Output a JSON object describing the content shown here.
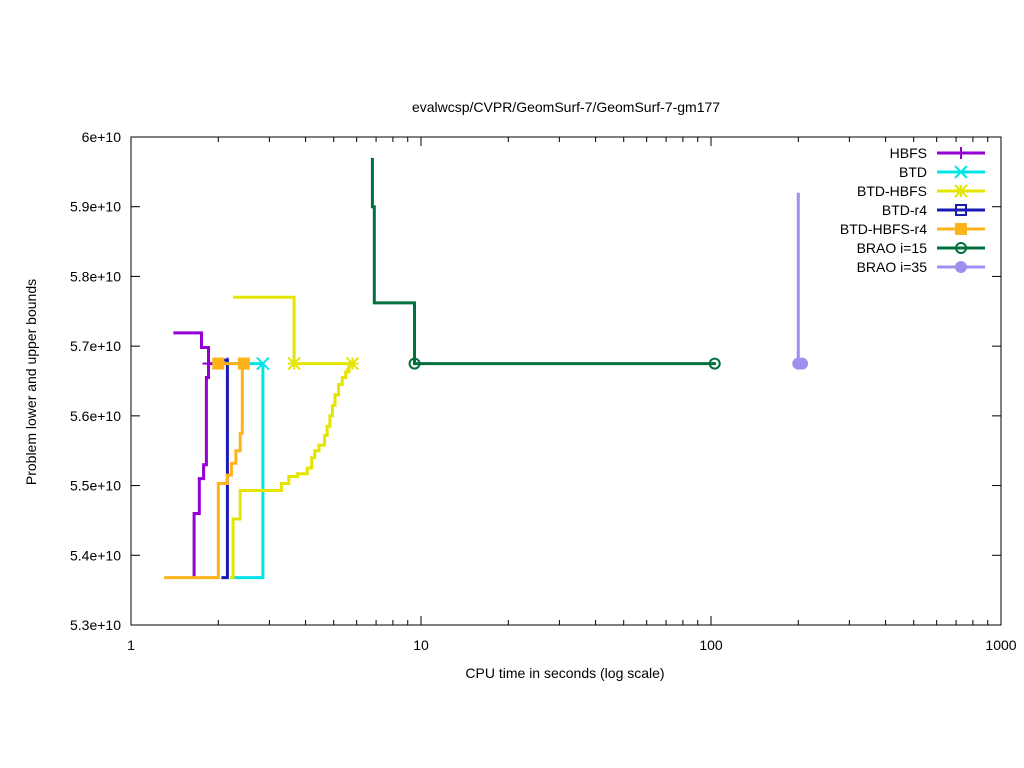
{
  "chart_data": {
    "type": "line",
    "title": "evalwcsp/CVPR/GeomSurf-7/GeomSurf-7-gm177",
    "xlabel": "CPU time in seconds (log scale)",
    "ylabel": "Problem lower and upper bounds",
    "xscale": "log",
    "xlim": [
      1,
      1000
    ],
    "ylim": [
      53000000000.0,
      60000000000.0
    ],
    "x_ticks": [
      {
        "value": 1,
        "label": "1"
      },
      {
        "value": 10,
        "label": "10"
      },
      {
        "value": 100,
        "label": "100"
      },
      {
        "value": 1000,
        "label": "1000"
      }
    ],
    "y_ticks": [
      {
        "value": 53000000000.0,
        "label": "5.3e+10"
      },
      {
        "value": 54000000000.0,
        "label": "5.4e+10"
      },
      {
        "value": 55000000000.0,
        "label": "5.5e+10"
      },
      {
        "value": 56000000000.0,
        "label": "5.6e+10"
      },
      {
        "value": 57000000000.0,
        "label": "5.7e+10"
      },
      {
        "value": 58000000000.0,
        "label": "5.8e+10"
      },
      {
        "value": 59000000000.0,
        "label": "5.9e+10"
      },
      {
        "value": 60000000000.0,
        "label": "6e+10"
      }
    ],
    "grid": false,
    "legend_position": "top-right",
    "series": [
      {
        "name": "HBFS",
        "color": "#9400d3",
        "marker": "plus",
        "upper": [
          [
            1.4,
            57190000000.0
          ],
          [
            1.75,
            57190000000.0
          ],
          [
            1.75,
            56980000000.0
          ],
          [
            1.85,
            56980000000.0
          ],
          [
            1.85,
            56750000000.0
          ],
          [
            2.15,
            56750000000.0
          ]
        ],
        "lower": [
          [
            1.65,
            53680000000.0
          ],
          [
            1.65,
            54600000000.0
          ],
          [
            1.72,
            54600000000.0
          ],
          [
            1.72,
            55100000000.0
          ],
          [
            1.78,
            55100000000.0
          ],
          [
            1.78,
            55300000000.0
          ],
          [
            1.82,
            55300000000.0
          ],
          [
            1.82,
            56550000000.0
          ],
          [
            1.85,
            56550000000.0
          ],
          [
            1.85,
            56750000000.0
          ]
        ],
        "markers": [
          [
            1.85,
            56750000000.0
          ],
          [
            2.15,
            56750000000.0
          ]
        ]
      },
      {
        "name": "BTD",
        "color": "#00e5e5",
        "marker": "cross",
        "upper": [
          [
            2.15,
            56750000000.0
          ],
          [
            2.85,
            56750000000.0
          ]
        ],
        "lower": [
          [
            2.2,
            53680000000.0
          ],
          [
            2.85,
            53680000000.0
          ],
          [
            2.85,
            56750000000.0
          ]
        ],
        "markers": [
          [
            2.85,
            56750000000.0
          ]
        ]
      },
      {
        "name": "BTD-HBFS",
        "color": "#e5e500",
        "marker": "star",
        "upper": [
          [
            2.25,
            57700000000.0
          ],
          [
            3.65,
            57700000000.0
          ],
          [
            3.65,
            56750000000.0
          ],
          [
            5.8,
            56750000000.0
          ]
        ],
        "lower": [
          [
            2.2,
            53680000000.0
          ],
          [
            2.25,
            53680000000.0
          ],
          [
            2.25,
            54520000000.0
          ],
          [
            2.38,
            54520000000.0
          ],
          [
            2.38,
            54930000000.0
          ],
          [
            3.3,
            54930000000.0
          ],
          [
            3.3,
            55030000000.0
          ],
          [
            3.5,
            55030000000.0
          ],
          [
            3.5,
            55130000000.0
          ],
          [
            3.75,
            55130000000.0
          ],
          [
            3.75,
            55170000000.0
          ],
          [
            4.05,
            55170000000.0
          ],
          [
            4.05,
            55250000000.0
          ],
          [
            4.2,
            55250000000.0
          ],
          [
            4.2,
            55400000000.0
          ],
          [
            4.3,
            55400000000.0
          ],
          [
            4.3,
            55500000000.0
          ],
          [
            4.45,
            55500000000.0
          ],
          [
            4.45,
            55580000000.0
          ],
          [
            4.65,
            55580000000.0
          ],
          [
            4.65,
            55720000000.0
          ],
          [
            4.75,
            55720000000.0
          ],
          [
            4.75,
            55850000000.0
          ],
          [
            4.85,
            55850000000.0
          ],
          [
            4.85,
            56000000000.0
          ],
          [
            4.95,
            56000000000.0
          ],
          [
            4.95,
            56150000000.0
          ],
          [
            5.05,
            56150000000.0
          ],
          [
            5.05,
            56300000000.0
          ],
          [
            5.2,
            56300000000.0
          ],
          [
            5.2,
            56450000000.0
          ],
          [
            5.35,
            56450000000.0
          ],
          [
            5.35,
            56550000000.0
          ],
          [
            5.5,
            56550000000.0
          ],
          [
            5.5,
            56630000000.0
          ],
          [
            5.65,
            56630000000.0
          ],
          [
            5.65,
            56720000000.0
          ],
          [
            5.8,
            56720000000.0
          ],
          [
            5.8,
            56750000000.0
          ]
        ],
        "markers": [
          [
            3.65,
            56750000000.0
          ],
          [
            5.8,
            56750000000.0
          ]
        ]
      },
      {
        "name": "BTD-r4",
        "color": "#1a1ab4",
        "marker": "square",
        "upper": [
          [
            2.05,
            56800000000.0
          ],
          [
            2.15,
            56800000000.0
          ],
          [
            2.15,
            56750000000.0
          ]
        ],
        "lower": [
          [
            2.05,
            53680000000.0
          ],
          [
            2.15,
            53680000000.0
          ],
          [
            2.15,
            56750000000.0
          ]
        ],
        "markers": []
      },
      {
        "name": "BTD-HBFS-r4",
        "color": "#ffb31a",
        "marker": "filled-square",
        "upper": [
          [
            2.0,
            56750000000.0
          ],
          [
            2.45,
            56750000000.0
          ]
        ],
        "lower": [
          [
            1.3,
            53680000000.0
          ],
          [
            2.0,
            53680000000.0
          ],
          [
            2.0,
            55030000000.0
          ],
          [
            2.15,
            55030000000.0
          ],
          [
            2.15,
            55150000000.0
          ],
          [
            2.22,
            55150000000.0
          ],
          [
            2.22,
            55320000000.0
          ],
          [
            2.3,
            55320000000.0
          ],
          [
            2.3,
            55500000000.0
          ],
          [
            2.38,
            55500000000.0
          ],
          [
            2.38,
            55750000000.0
          ],
          [
            2.42,
            55750000000.0
          ],
          [
            2.42,
            56750000000.0
          ]
        ],
        "markers": [
          [
            2.0,
            56750000000.0
          ],
          [
            2.45,
            56750000000.0
          ]
        ]
      },
      {
        "name": "BRAO i=15",
        "color": "#00703c",
        "marker": "circle",
        "upper": [
          [
            6.8,
            59700000000.0
          ],
          [
            6.8,
            59000000000.0
          ],
          [
            6.9,
            59000000000.0
          ],
          [
            6.9,
            57620000000.0
          ],
          [
            9.5,
            57620000000.0
          ],
          [
            9.5,
            56750000000.0
          ],
          [
            103,
            56750000000.0
          ]
        ],
        "lower": [],
        "markers": [
          [
            9.5,
            56750000000.0
          ],
          [
            103,
            56750000000.0
          ]
        ]
      },
      {
        "name": "BRAO i=35",
        "color": "#9f8fef",
        "marker": "filled-circle",
        "upper": [
          [
            200,
            59200000000.0
          ],
          [
            200,
            56750000000.0
          ],
          [
            206,
            56750000000.0
          ]
        ],
        "lower": [],
        "markers": [
          [
            200,
            56750000000.0
          ],
          [
            206,
            56750000000.0
          ]
        ]
      }
    ]
  }
}
